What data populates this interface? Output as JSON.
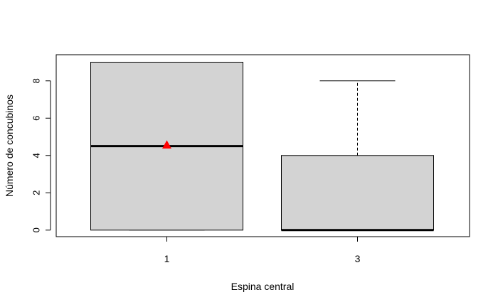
{
  "chart_data": {
    "type": "boxplot",
    "title": "",
    "xlabel": "Espina central",
    "ylabel": "Número de concubinos",
    "ylim": [
      -0.35,
      9.4
    ],
    "yticks": [
      0,
      2,
      4,
      6,
      8
    ],
    "categories": [
      "1",
      "3"
    ],
    "boxes": [
      {
        "category": "1",
        "min": 0,
        "q1": 0,
        "median": 4.5,
        "q3": 9,
        "max": 9,
        "mean": 4.57
      },
      {
        "category": "3",
        "min": 0,
        "q1": 0,
        "median": 0,
        "q3": 4,
        "max": 8,
        "mean": null
      }
    ],
    "colors": {
      "box_fill": "#d3d3d3",
      "mean_marker": "#ff0000",
      "line": "#000000"
    },
    "mean_marker_shape": "triangle",
    "grid": false,
    "legend": null
  }
}
